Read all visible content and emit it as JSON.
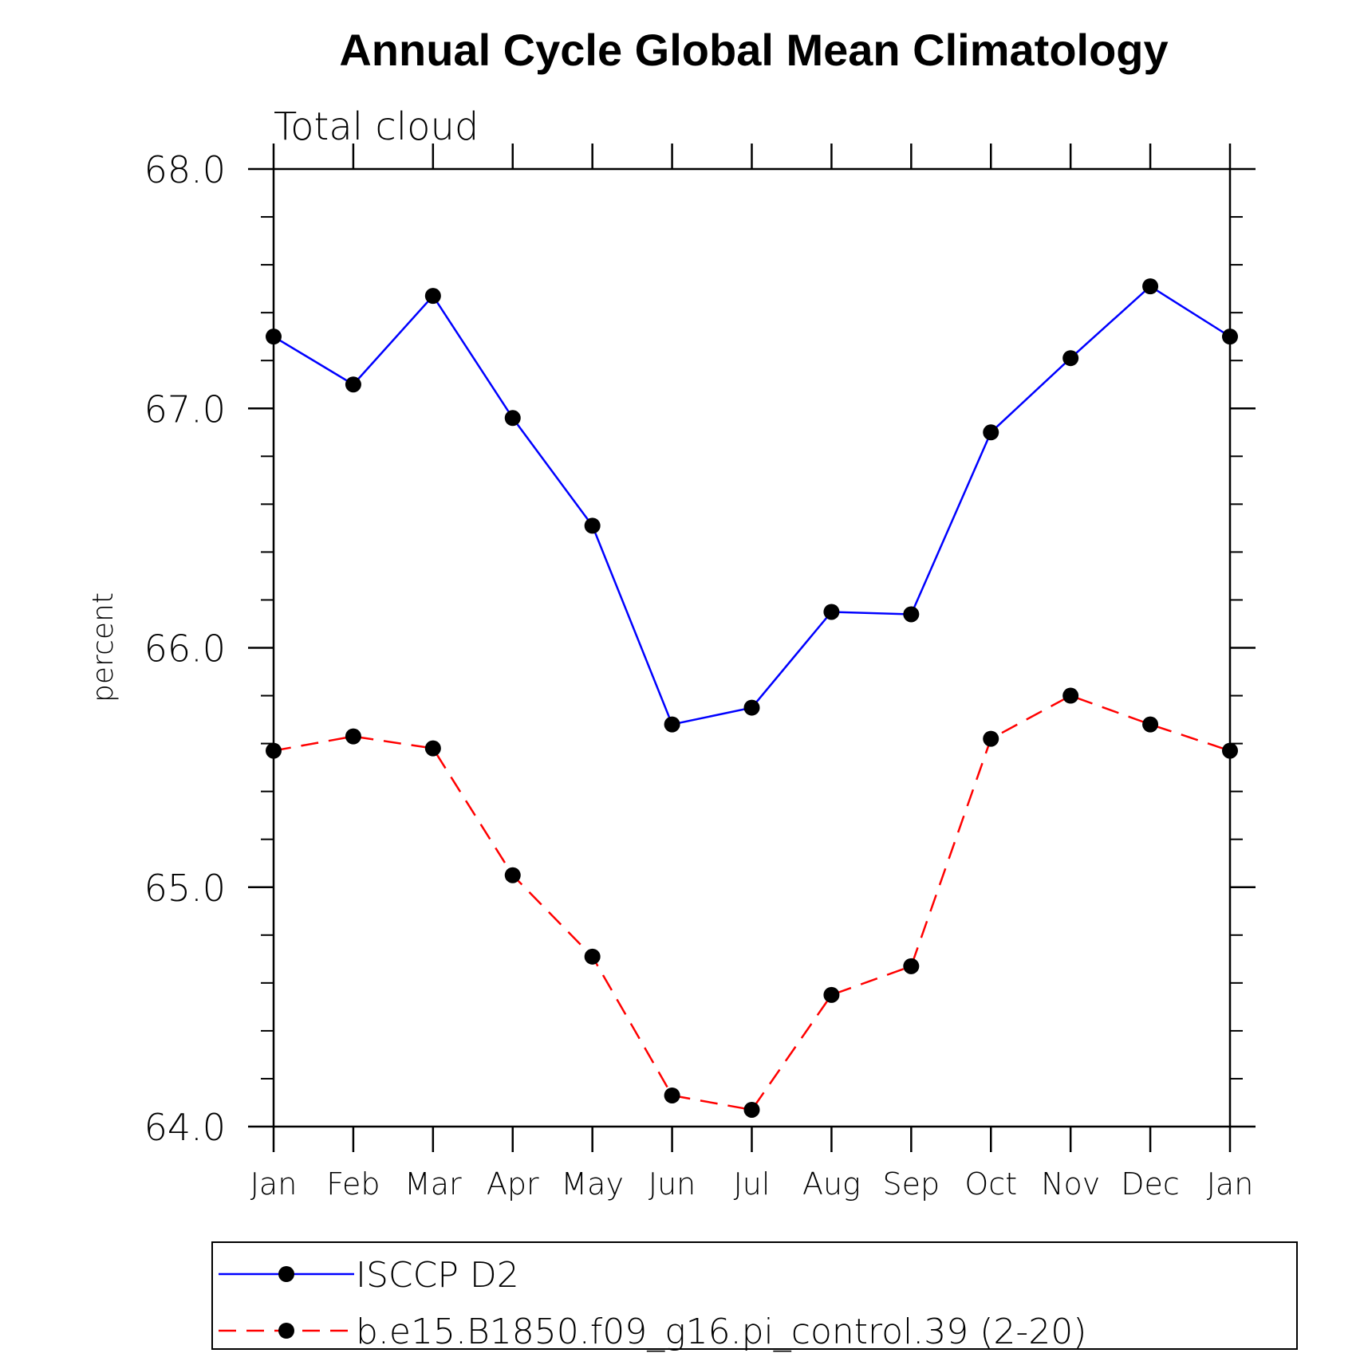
{
  "chart_data": {
    "type": "line",
    "title": "Annual Cycle Global Mean Climatology",
    "subtitle": "Total cloud",
    "xlabel": "",
    "ylabel": "percent",
    "categories": [
      "Jan",
      "Feb",
      "Mar",
      "Apr",
      "May",
      "Jun",
      "Jul",
      "Aug",
      "Sep",
      "Oct",
      "Nov",
      "Dec",
      "Jan"
    ],
    "ylim": [
      64.0,
      68.0
    ],
    "yticks": [
      "64.0",
      "65.0",
      "66.0",
      "67.0",
      "68.0"
    ],
    "y_minor_step": 0.2,
    "grid": false,
    "legend_position": "bottom",
    "series": [
      {
        "name": "ISCCP D2",
        "color": "#0000ff",
        "line_style": "solid",
        "marker": "filled-circle",
        "values": [
          67.3,
          67.1,
          67.47,
          66.96,
          66.51,
          65.68,
          65.75,
          66.15,
          66.14,
          66.9,
          67.21,
          67.51,
          67.3
        ]
      },
      {
        "name": "b.e15.B1850.f09_g16.pi_control.39 (2-20)",
        "color": "#ff0000",
        "line_style": "dashed",
        "marker": "filled-circle",
        "values": [
          65.57,
          65.63,
          65.58,
          65.05,
          64.71,
          64.13,
          64.07,
          64.55,
          64.67,
          65.62,
          65.8,
          65.68,
          65.57
        ]
      }
    ]
  }
}
